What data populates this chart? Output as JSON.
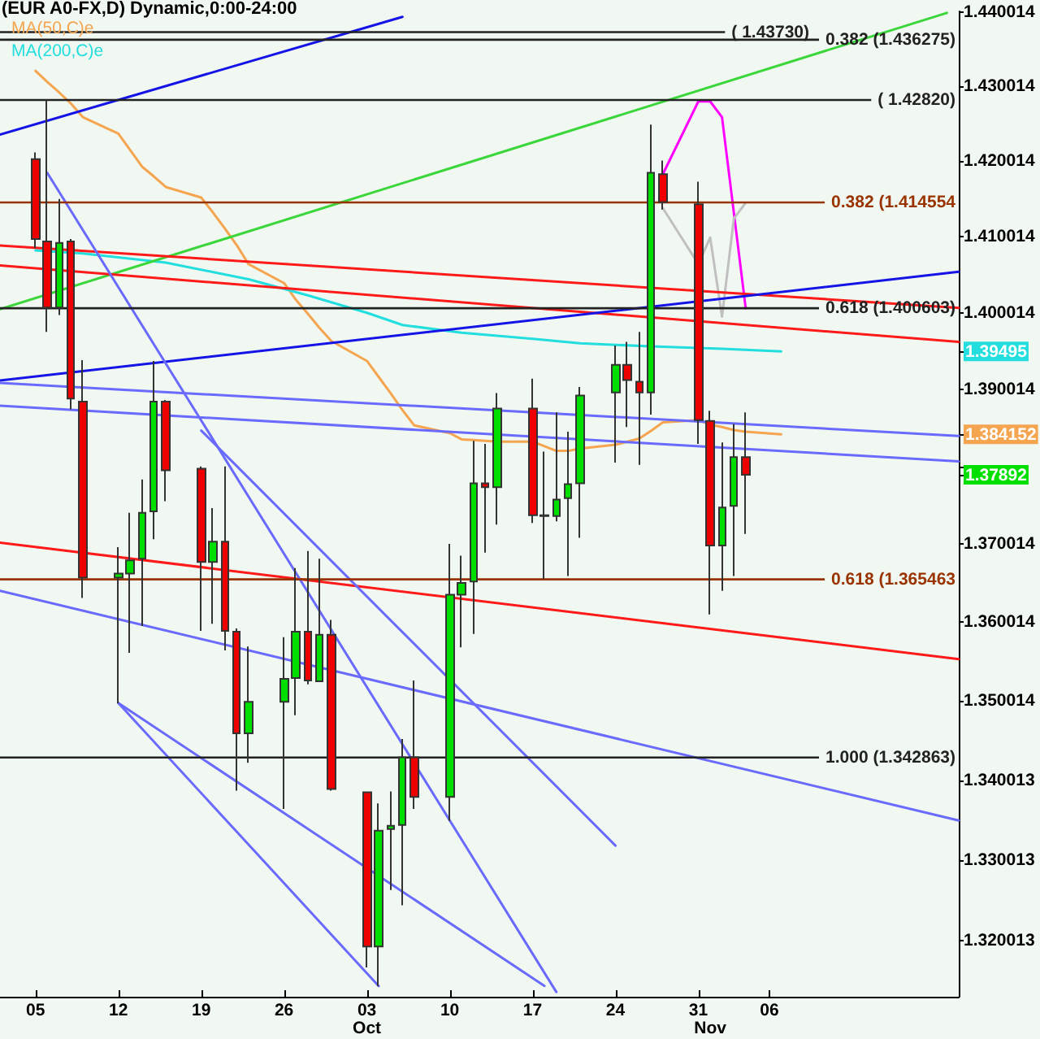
{
  "chart_data": {
    "type": "candlestick",
    "title": "(EUR A0-FX,D) Dynamic,0:00-24:00",
    "x": [
      "--09-05",
      "--09-06",
      "--09-07",
      "--09-08",
      "--09-09",
      "--09-12",
      "--09-13",
      "--09-14",
      "--09-15",
      "--09-16",
      "--09-19",
      "--09-20",
      "--09-21",
      "--09-22",
      "--09-23",
      "--09-26",
      "--09-27",
      "--09-28",
      "--09-29",
      "--09-30",
      "--10-03",
      "--10-04",
      "--10-05",
      "--10-06",
      "--10-07",
      "--10-10",
      "--10-11",
      "--10-12",
      "--10-13",
      "--10-14",
      "--10-17",
      "--10-18",
      "--10-19",
      "--10-20",
      "--10-21",
      "--10-24",
      "--10-25",
      "--10-26",
      "--10-27",
      "--10-28",
      "--10-31",
      "--11-01",
      "--11-02",
      "--11-03",
      "--11-04"
    ],
    "ohlc": [
      [
        1.4203,
        1.4212,
        1.4085,
        1.4097
      ],
      [
        1.4094,
        1.4282,
        1.3975,
        1.4007
      ],
      [
        1.4007,
        1.415,
        1.3997,
        1.4092
      ],
      [
        1.4094,
        1.4097,
        1.3874,
        1.3888
      ],
      [
        1.3884,
        1.3938,
        1.3631,
        1.3657
      ],
      [
        1.3657,
        1.3696,
        1.3497,
        1.3662
      ],
      [
        1.3662,
        1.374,
        1.3561,
        1.3679
      ],
      [
        1.3681,
        1.3783,
        1.3595,
        1.374
      ],
      [
        1.3742,
        1.3937,
        1.3706,
        1.3884
      ],
      [
        1.3884,
        1.3886,
        1.3755,
        1.3795
      ],
      [
        1.3797,
        1.38,
        1.3589,
        1.3677
      ],
      [
        1.3677,
        1.3746,
        1.3598,
        1.3703
      ],
      [
        1.3703,
        1.38,
        1.3564,
        1.3589
      ],
      [
        1.3588,
        1.3592,
        1.3387,
        1.3459
      ],
      [
        1.3459,
        1.3569,
        1.3422,
        1.3499
      ],
      [
        1.3499,
        1.3581,
        1.3364,
        1.3528
      ],
      [
        1.3529,
        1.3669,
        1.3482,
        1.3588
      ],
      [
        1.3588,
        1.3691,
        1.3521,
        1.3526
      ],
      [
        1.3525,
        1.3681,
        1.3524,
        1.3584
      ],
      [
        1.3584,
        1.3603,
        1.3387,
        1.3389
      ],
      [
        1.3385,
        1.3386,
        1.3167,
        1.3193
      ],
      [
        1.3193,
        1.3371,
        1.3144,
        1.3337
      ],
      [
        1.3339,
        1.3386,
        1.3263,
        1.3343
      ],
      [
        1.3344,
        1.3452,
        1.3244,
        1.3429
      ],
      [
        1.3429,
        1.3526,
        1.3364,
        1.3379
      ],
      [
        1.3379,
        1.37,
        1.3349,
        1.3635
      ],
      [
        1.3635,
        1.3685,
        1.3568,
        1.365
      ],
      [
        1.3652,
        1.3833,
        1.3585,
        1.3778
      ],
      [
        1.3778,
        1.3829,
        1.3689,
        1.3773
      ],
      [
        1.3773,
        1.3895,
        1.3725,
        1.3875
      ],
      [
        1.3875,
        1.3914,
        1.3727,
        1.3737
      ],
      [
        1.3737,
        1.3819,
        1.3655,
        1.3736
      ],
      [
        1.3736,
        1.387,
        1.3729,
        1.3757
      ],
      [
        1.3759,
        1.3845,
        1.3659,
        1.3777
      ],
      [
        1.3778,
        1.3903,
        1.3708,
        1.3892
      ],
      [
        1.3896,
        1.3957,
        1.3805,
        1.3932
      ],
      [
        1.3932,
        1.3962,
        1.3851,
        1.3912
      ],
      [
        1.391,
        1.3975,
        1.3802,
        1.3896
      ],
      [
        1.3896,
        1.4249,
        1.3867,
        1.4185
      ],
      [
        1.4183,
        1.4201,
        1.4136,
        1.4146
      ],
      [
        1.4143,
        1.4173,
        1.3829,
        1.386
      ],
      [
        1.3859,
        1.3872,
        1.361,
        1.3698
      ],
      [
        1.3698,
        1.3831,
        1.364,
        1.3747
      ],
      [
        1.3749,
        1.3855,
        1.3659,
        1.3812
      ],
      [
        1.3812,
        1.387,
        1.3713,
        1.37892
      ]
    ],
    "colors": [
      "#ee0000",
      "#ee0000",
      "#00e000",
      "#ee0000",
      "#ee0000",
      "#00e000",
      "#00e000",
      "#00e000",
      "#00e000",
      "#ee0000",
      "#ee0000",
      "#00e000",
      "#ee0000",
      "#ee0000",
      "#00e000",
      "#00e000",
      "#00e000",
      "#ee0000",
      "#00e000",
      "#ee0000",
      "#ee0000",
      "#00e000",
      "#00e000",
      "#00e000",
      "#ee0000",
      "#00e000",
      "#00e000",
      "#00e000",
      "#ee0000",
      "#00e000",
      "#ee0000",
      "#ee0000",
      "#00e000",
      "#00e000",
      "#00e000",
      "#00e000",
      "#ee0000",
      "#ee0000",
      "#00e000",
      "#ee0000",
      "#ee0000",
      "#ee0000",
      "#00e000",
      "#00e000",
      "#ee0000"
    ],
    "series": [
      {
        "type": "line",
        "name": "MA(50,C)e",
        "color": "#f5a550",
        "x": [
          "--09-05",
          "--09-06",
          "--09-07",
          "--09-08",
          "--09-09",
          "--09-12",
          "--09-13",
          "--09-14",
          "--09-15",
          "--09-16",
          "--09-19",
          "--09-20",
          "--09-21",
          "--09-22",
          "--09-23",
          "--09-26",
          "--09-27",
          "--09-28",
          "--09-29",
          "--09-30",
          "--10-03",
          "--10-04",
          "--10-05",
          "--10-06",
          "--10-07",
          "--10-10",
          "--10-11",
          "--10-12",
          "--10-13",
          "--10-14",
          "--10-17",
          "--10-18",
          "--10-19",
          "--10-20",
          "--10-21",
          "--10-24",
          "--10-25",
          "--10-26",
          "--10-27",
          "--10-28",
          "--10-31",
          "--11-01",
          "--11-02",
          "--11-03",
          "--11-04",
          "--11-07"
        ],
        "values": [
          1.4321,
          1.4306,
          1.4292,
          1.4277,
          1.4259,
          1.4237,
          1.4215,
          1.4193,
          1.418,
          1.4166,
          1.4152,
          1.4132,
          1.4111,
          1.4089,
          1.4064,
          1.4039,
          1.4017,
          1.3999,
          1.398,
          1.3963,
          1.3937,
          1.3916,
          1.3895,
          1.3873,
          1.3853,
          1.3843,
          1.3835,
          1.3834,
          1.3833,
          1.3832,
          1.3832,
          1.3826,
          1.382,
          1.382,
          1.3823,
          1.3828,
          1.3832,
          1.3836,
          1.3846,
          1.3857,
          1.386,
          1.3854,
          1.3851,
          1.3847,
          1.3845,
          1.384152
        ]
      },
      {
        "type": "line",
        "name": "MA(200,C)e",
        "color": "#22dede",
        "x": [
          "--09-05",
          "--09-09",
          "--09-16",
          "--09-23",
          "--09-28",
          "--10-03",
          "--10-06",
          "--10-11",
          "--10-17",
          "--10-21",
          "--10-27",
          "--11-02",
          "--11-07"
        ],
        "values": [
          1.4082,
          1.4078,
          1.4066,
          1.4044,
          1.4023,
          1.4,
          1.3984,
          1.3974,
          1.3966,
          1.396,
          1.3956,
          1.3953,
          1.39495
        ]
      },
      {
        "type": "line",
        "color": "#ff00ff",
        "x": [
          "--10-28",
          "--10-31",
          "--11-01",
          "--11-02",
          "--11-04"
        ],
        "values": [
          1.4183,
          1.428,
          1.428,
          1.4259,
          1.4006
        ]
      },
      {
        "type": "line",
        "color": "#c0c0c0",
        "x": [
          "--10-28",
          "--10-31",
          "--11-01",
          "--11-02",
          "--11-03",
          "--11-04"
        ],
        "values": [
          1.4138,
          1.4064,
          1.4099,
          1.3995,
          1.4124,
          1.4145
        ]
      },
      {
        "type": "line",
        "color": "#1414e6",
        "x": [
          "--09-02",
          "--10-06"
        ],
        "values": [
          1.42358,
          1.43936
        ]
      },
      {
        "type": "line",
        "color": "#3ad63a",
        "x": [
          "--09-02",
          "--11-21"
        ],
        "values": [
          1.40048,
          1.4399
        ]
      },
      {
        "type": "line",
        "color": "#ff1a1a",
        "x": [
          "--09-02",
          "--11-22"
        ],
        "values": [
          1.40886,
          1.40065
        ]
      },
      {
        "type": "line",
        "color": "#ff1a1a",
        "x": [
          "--09-02",
          "--11-22"
        ],
        "values": [
          1.40622,
          1.39618
        ]
      },
      {
        "type": "line",
        "color": "#ff1a1a",
        "x": [
          "--09-02",
          "--11-22"
        ],
        "values": [
          1.37016,
          1.3553
        ]
      },
      {
        "type": "line",
        "color": "#1414e6",
        "x": [
          "--09-02",
          "--11-22"
        ],
        "values": [
          1.39114,
          1.40539
        ]
      },
      {
        "type": "line",
        "color": "#6a6aff",
        "x": [
          "--09-02",
          "--11-22"
        ],
        "values": [
          1.39083,
          1.38394
        ]
      },
      {
        "type": "line",
        "color": "#6a6aff",
        "x": [
          "--09-02",
          "--11-22"
        ],
        "values": [
          1.38786,
          1.38065
        ]
      },
      {
        "type": "line",
        "color": "#6a6aff",
        "x": [
          "--09-02",
          "--11-22"
        ],
        "values": [
          1.364,
          1.33496
        ]
      },
      {
        "type": "line",
        "color": "#6a6aff",
        "x": [
          "--09-06",
          "--10-19"
        ],
        "values": [
          1.41847,
          1.31369
        ]
      },
      {
        "type": "line",
        "color": "#6a6aff",
        "x": [
          "--09-19",
          "--10-24"
        ],
        "values": [
          1.38464,
          1.33183
        ]
      },
      {
        "type": "line",
        "color": "#6a6aff",
        "x": [
          "--09-12",
          "--10-18"
        ],
        "values": [
          1.34973,
          1.31443
        ]
      },
      {
        "type": "line",
        "color": "#6a6aff",
        "x": [
          "--09-12",
          "--10-04"
        ],
        "values": [
          1.34973,
          1.31441
        ]
      }
    ],
    "xlim": [
      "--09-02",
      "--11-22"
    ],
    "xticks": [
      {
        "value": "--09-05",
        "label": "05"
      },
      {
        "value": "--09-12",
        "label": "12"
      },
      {
        "value": "--09-19",
        "label": "19"
      },
      {
        "value": "--09-26",
        "label": "26"
      },
      {
        "value": "--10-03",
        "label": "03"
      },
      {
        "value": "--10-10",
        "label": "10"
      },
      {
        "value": "--10-17",
        "label": "17"
      },
      {
        "value": "--10-24",
        "label": "24"
      },
      {
        "value": "--10-31",
        "label": "31"
      },
      {
        "value": "--11-06",
        "label": "06"
      }
    ],
    "x2lim": [
      "--09-02",
      "--11-22"
    ],
    "x2ticks": [
      {
        "value": "--10-03",
        "label": "Oct"
      },
      {
        "value": "--11-01",
        "label": "Nov"
      }
    ],
    "ylim": [
      1.3131,
      1.4401
    ],
    "yticks": [
      1.320013,
      1.330013,
      1.340013,
      1.350014,
      1.360014,
      1.370014,
      1.37892,
      {
        "value": 1.380014,
        "label": null
      },
      1.384152,
      1.390014,
      1.39495,
      1.400014,
      1.410014,
      1.420014,
      1.430014,
      1.440014
    ],
    "log": true,
    "legend": "top left",
    "ref_lines": [
      {
        "axis": "y",
        "value": 1.436275,
        "label": "0.382 (1.436275)",
        "color": "#222222"
      },
      {
        "axis": "y",
        "value": 1.4373,
        "label": "( 1.43730)",
        "color": "#222222"
      },
      {
        "axis": "y",
        "value": 1.4282,
        "label": "( 1.42820)",
        "color": "#222222"
      },
      {
        "axis": "y",
        "value": 1.414554,
        "label": "0.382 (1.414554",
        "color": "#993300"
      },
      {
        "axis": "y",
        "value": 1.400603,
        "label": "0.618 (1.400603)",
        "color": "#222222"
      },
      {
        "axis": "y",
        "value": 1.365463,
        "label": "0.618 (1.365463",
        "color": "#993300"
      },
      {
        "axis": "y",
        "value": 1.342863,
        "label": "1.000 (1.342863)",
        "color": "#222222"
      }
    ]
  }
}
